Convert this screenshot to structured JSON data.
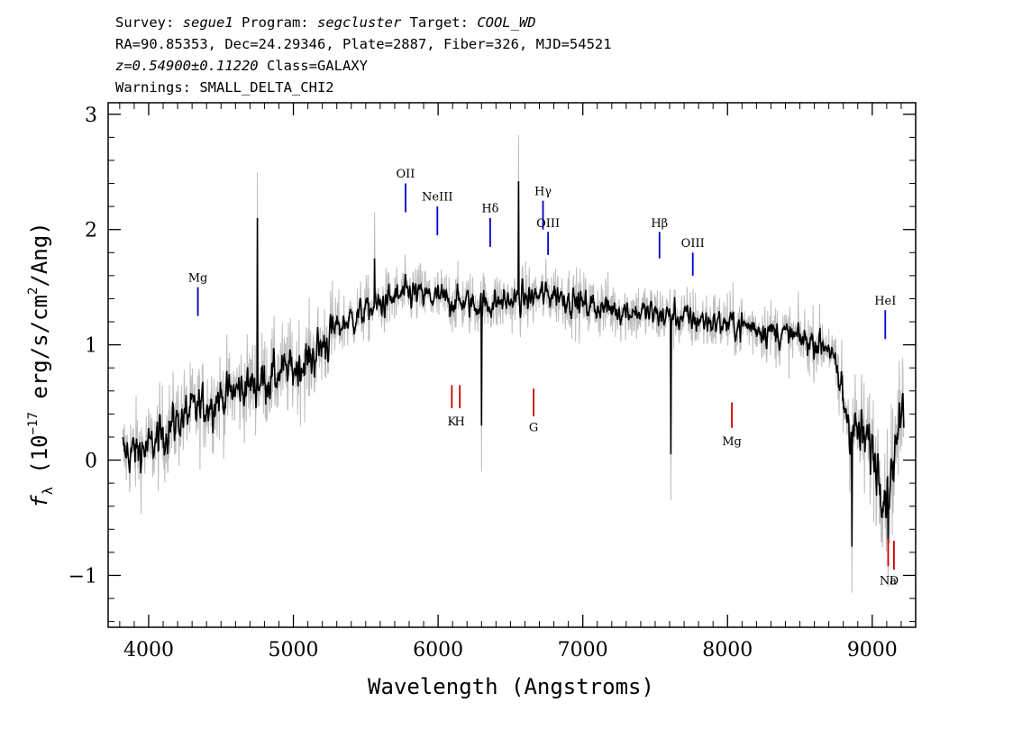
{
  "header": {
    "line1": {
      "survey_label": "Survey: ",
      "survey": "segue1",
      "program_label": " Program: ",
      "program": "segcluster",
      "target_label": " Target: ",
      "target": "COOL_WD"
    },
    "line2": "RA=90.85353, Dec=24.29346, Plate=2887, Fiber=326, MJD=54521",
    "line3": {
      "redshift": "z=0.54900±0.11220",
      "class_text": " Class=GALAXY"
    },
    "line4": "Warnings: SMALL_DELTA_CHI2"
  },
  "chart_data": {
    "type": "line",
    "xlabel": "Wavelength (Angstroms)",
    "ylabel": "f_λ (10^-17 erg/s/cm^2/Ang)",
    "xlim": [
      3720,
      9300
    ],
    "ylim": [
      -1.45,
      3.1
    ],
    "xticks": [
      4000,
      5000,
      6000,
      7000,
      8000,
      9000
    ],
    "yticks": [
      -1,
      0,
      1,
      2,
      3
    ],
    "grid": false,
    "legend": "none",
    "series": [
      {
        "role": "raw flux",
        "color": "#bdbdbd",
        "x_start": 3820,
        "x_end": 9220,
        "continuum_anchor_points": {
          "x": [
            3820,
            4000,
            4200,
            4500,
            4800,
            5100,
            5300,
            5500,
            5800,
            6000,
            6300,
            6600,
            6800,
            7000,
            7300,
            7600,
            7900,
            8200,
            8500,
            8700,
            8850,
            9000,
            9100,
            9220
          ],
          "y": [
            0.05,
            0.1,
            0.35,
            0.55,
            0.7,
            0.85,
            1.15,
            1.3,
            1.45,
            1.4,
            1.35,
            1.4,
            1.45,
            1.35,
            1.3,
            1.25,
            1.2,
            1.15,
            1.05,
            1.0,
            0.3,
            0.1,
            -0.3,
            0.5
          ]
        }
      },
      {
        "role": "smoothed flux",
        "color": "#000000",
        "x_start": 3820,
        "x_end": 9220,
        "notable_features": [
          {
            "x": 4750,
            "y": 2.1
          },
          {
            "x": 5560,
            "y": 1.75
          },
          {
            "x": 6300,
            "y": 0.3
          },
          {
            "x": 6555,
            "y": 2.42
          },
          {
            "x": 7610,
            "y": 0.05
          },
          {
            "x": 8860,
            "y": -0.75
          },
          {
            "x": 9110,
            "y": -0.7
          }
        ]
      }
    ],
    "annotations": {
      "emission_color": "#0000cc",
      "absorption_color": "#cc0000",
      "lines": [
        {
          "label": "Mg",
          "x": 4340,
          "y_low": 1.25,
          "y_high": 1.5,
          "kind": "emission",
          "label_y": 1.55
        },
        {
          "label": "OII",
          "x": 5775,
          "y_low": 2.15,
          "y_high": 2.4,
          "kind": "emission",
          "label_y": 2.45
        },
        {
          "label": "NeIII",
          "x": 5995,
          "y_low": 1.95,
          "y_high": 2.2,
          "kind": "emission",
          "label_y": 2.25
        },
        {
          "label": "Hδ",
          "x": 6360,
          "y_low": 1.85,
          "y_high": 2.1,
          "kind": "emission",
          "label_y": 2.15
        },
        {
          "label": "Hγ",
          "x": 6725,
          "y_low": 2.0,
          "y_high": 2.25,
          "kind": "emission",
          "label_y": 2.3
        },
        {
          "label": "OIII",
          "x": 6760,
          "y_low": 1.78,
          "y_high": 1.98,
          "kind": "emission",
          "label_y": 2.02
        },
        {
          "label": "Hβ",
          "x": 7530,
          "y_low": 1.75,
          "y_high": 1.98,
          "kind": "emission",
          "label_y": 2.02
        },
        {
          "label": "OIII",
          "x": 7760,
          "y_low": 1.6,
          "y_high": 1.8,
          "kind": "emission",
          "label_y": 1.85
        },
        {
          "label": "HeI",
          "x": 9090,
          "y_low": 1.05,
          "y_high": 1.3,
          "kind": "emission",
          "label_y": 1.35
        },
        {
          "label": "K",
          "x": 6095,
          "y_low": 0.45,
          "y_high": 0.65,
          "kind": "absorption",
          "label_y": 0.3
        },
        {
          "label": "H",
          "x": 6150,
          "y_low": 0.45,
          "y_high": 0.65,
          "kind": "absorption",
          "label_y": 0.3
        },
        {
          "label": "G",
          "x": 6660,
          "y_low": 0.38,
          "y_high": 0.62,
          "kind": "absorption",
          "label_y": 0.25
        },
        {
          "label": "Mg",
          "x": 8030,
          "y_low": 0.28,
          "y_high": 0.5,
          "kind": "absorption",
          "label_y": 0.13
        },
        {
          "label": "Na",
          "x": 9110,
          "y_low": -0.92,
          "y_high": -0.68,
          "kind": "absorption",
          "label_y": -1.08
        },
        {
          "label": "D",
          "x": 9150,
          "y_low": -0.95,
          "y_high": -0.7,
          "kind": "absorption",
          "label_y": -1.08
        }
      ]
    }
  }
}
